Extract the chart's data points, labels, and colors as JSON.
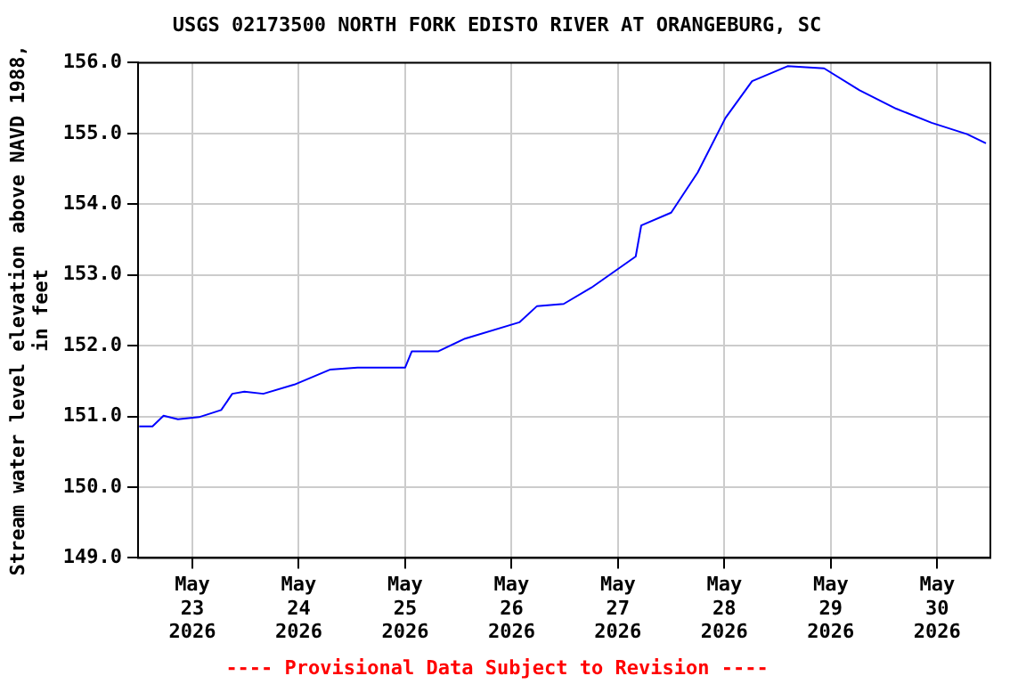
{
  "chart_data": {
    "type": "line",
    "title": "USGS 02173500 NORTH FORK EDISTO RIVER AT ORANGEBURG, SC",
    "ylabel": "Stream water level elevation above NAVD 1988, in feet",
    "annotations": [
      "---- Provisional Data Subject to Revision ----"
    ],
    "x": [
      "2026-05-22T12:00",
      "2026-05-22T15:00",
      "2026-05-22T17:30",
      "2026-05-22T20:45",
      "2026-05-23T01:30",
      "2026-05-23T06:30",
      "2026-05-23T09:00",
      "2026-05-23T11:45",
      "2026-05-23T16:00",
      "2026-05-23T23:00",
      "2026-05-24T07:00",
      "2026-05-24T13:15",
      "2026-05-25T00:00",
      "2026-05-25T01:30",
      "2026-05-25T07:30",
      "2026-05-25T13:30",
      "2026-05-26T01:45",
      "2026-05-26T05:45",
      "2026-05-26T11:45",
      "2026-05-26T18:00",
      "2026-05-27T04:00",
      "2026-05-27T05:15",
      "2026-05-27T12:00",
      "2026-05-27T18:00",
      "2026-05-28T00:15",
      "2026-05-28T06:15",
      "2026-05-28T14:15",
      "2026-05-28T22:30",
      "2026-05-29T06:30",
      "2026-05-29T14:45",
      "2026-05-29T22:45",
      "2026-05-30T06:45",
      "2026-05-30T11:00"
    ],
    "series": [
      {
        "color": "#0000ff",
        "values": [
          150.86,
          150.86,
          151.01,
          150.96,
          150.99,
          151.09,
          151.32,
          151.35,
          151.32,
          151.45,
          151.66,
          151.69,
          151.69,
          151.92,
          151.92,
          152.1,
          152.33,
          152.56,
          152.59,
          152.82,
          153.26,
          153.7,
          153.88,
          154.45,
          155.22,
          155.74,
          155.95,
          155.92,
          155.61,
          155.35,
          155.15,
          154.99,
          154.86
        ]
      }
    ],
    "xlim": [
      "2026-05-22T11:45",
      "2026-05-30T12:00"
    ],
    "xticks": [
      {
        "value": "2026-05-23",
        "label": "May\n23\n2026"
      },
      {
        "value": "2026-05-24",
        "label": "May\n24\n2026"
      },
      {
        "value": "2026-05-25",
        "label": "May\n25\n2026"
      },
      {
        "value": "2026-05-26",
        "label": "May\n26\n2026"
      },
      {
        "value": "2026-05-27",
        "label": "May\n27\n2026"
      },
      {
        "value": "2026-05-28",
        "label": "May\n28\n2026"
      },
      {
        "value": "2026-05-29",
        "label": "May\n29\n2026"
      },
      {
        "value": "2026-05-30",
        "label": "May\n30\n2026"
      }
    ],
    "ylim": [
      149,
      156
    ],
    "yticks": [
      {
        "value": 149,
        "label": "149.0"
      },
      {
        "value": 150,
        "label": "150.0"
      },
      {
        "value": 151,
        "label": "151.0"
      },
      {
        "value": 152,
        "label": "152.0"
      },
      {
        "value": 153,
        "label": "153.0"
      },
      {
        "value": 154,
        "label": "154.0"
      },
      {
        "value": 155,
        "label": "155.0"
      },
      {
        "value": 156,
        "label": "156.0"
      }
    ],
    "grid": true,
    "legend": false,
    "marker": "none",
    "line_style": "solid"
  }
}
